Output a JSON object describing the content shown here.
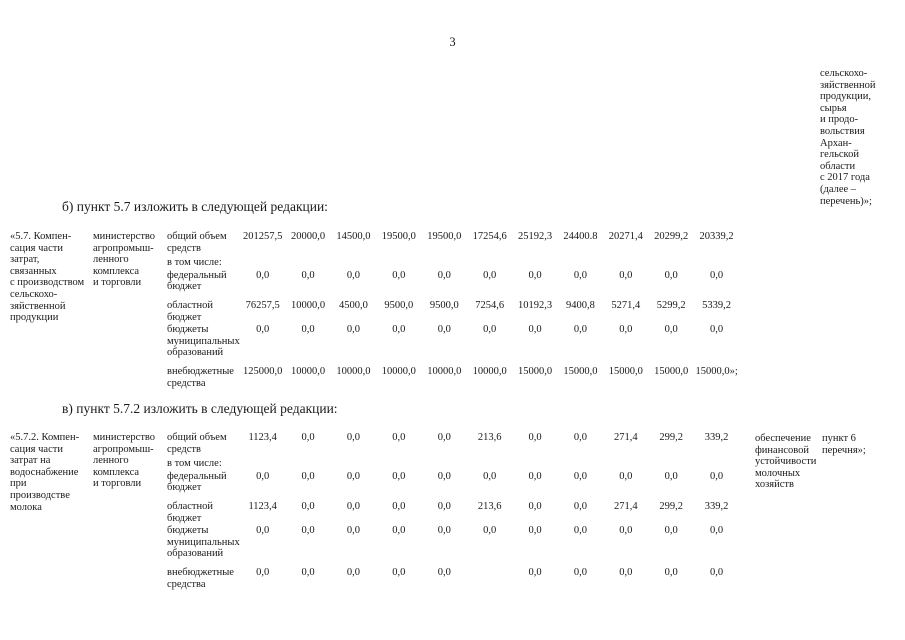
{
  "page_number": "3",
  "carryover_note": "сельскохо-\nзяйственной\nпродукции,\nсырья\nи продо-\nвольствия\nАрхан-\nгельской\nобласти\nс 2017 года\n(далее –\nперечень)»;",
  "sections": [
    {
      "heading": "б) пункт 5.7 изложить в следующей редакции:"
    },
    {
      "heading": "в) пункт 5.7.2 изложить в следующей редакции:"
    }
  ],
  "tables": [
    {
      "item": "«5.7. Компен-\nсация части\nзатрат,\nсвязанных\nс производством\nсельскохо-\nзяйственной\nпродукции",
      "ministry": "министерство\nагропромыш-\nленного\nкомплекса\nи торговли",
      "rows": [
        {
          "label": "общий объем\nсредств",
          "values": [
            "201257,5",
            "20000,0",
            "14500,0",
            "19500,0",
            "19500,0",
            "17254,6",
            "25192,3",
            "24400.8",
            "20271,4",
            "20299,2",
            "20339,2"
          ]
        },
        {
          "label": "в том числе:",
          "values": []
        },
        {
          "label": "федеральный\nбюджет",
          "values": [
            "0,0",
            "0,0",
            "0,0",
            "0,0",
            "0,0",
            "0,0",
            "0,0",
            "0,0",
            "0,0",
            "0,0",
            "0,0"
          ]
        },
        {
          "label": "областной\nбюджет",
          "values": [
            "76257,5",
            "10000,0",
            "4500,0",
            "9500,0",
            "9500,0",
            "7254,6",
            "10192,3",
            "9400,8",
            "5271,4",
            "5299,2",
            "5339,2"
          ]
        },
        {
          "label": "бюджеты\nмуниципальных\nобразований",
          "values": [
            "0,0",
            "0,0",
            "0,0",
            "0,0",
            "0,0",
            "0,0",
            "0,0",
            "0,0",
            "0,0",
            "0,0",
            "0,0"
          ]
        },
        {
          "label": "внебюджетные\nсредства",
          "values": [
            "125000,0",
            "10000,0",
            "10000,0",
            "10000,0",
            "10000,0",
            "10000,0",
            "15000,0",
            "15000,0",
            "15000,0",
            "15000,0",
            "15000,0»;"
          ]
        }
      ]
    },
    {
      "item": "«5.7.2. Компен-\nсация части\nзатрат на\nводоснабжение\nпри\nпроизводстве\nмолока",
      "ministry": "министерство\nагропромыш-\nленного\nкомплекса\nи торговли",
      "purpose": "обеспечение\nфинансовой\nустойчивости\nмолочных\nхозяйств",
      "reference": "пункт 6\nперечня»;",
      "rows": [
        {
          "label": "общий объем\nсредств",
          "values": [
            "1123,4",
            "0,0",
            "0,0",
            "0,0",
            "0,0",
            "213,6",
            "0,0",
            "0,0",
            "271,4",
            "299,2",
            "339,2"
          ]
        },
        {
          "label": "в том числе:",
          "values": []
        },
        {
          "label": "федеральный\nбюджет",
          "values": [
            "0,0",
            "0,0",
            "0,0",
            "0,0",
            "0,0",
            "0,0",
            "0,0",
            "0,0",
            "0,0",
            "0,0",
            "0,0"
          ]
        },
        {
          "label": "областной\nбюджет",
          "values": [
            "1123,4",
            "0,0",
            "0,0",
            "0,0",
            "0,0",
            "213,6",
            "0,0",
            "0,0",
            "271,4",
            "299,2",
            "339,2"
          ]
        },
        {
          "label": "бюджеты\nмуниципальных\nобразований",
          "values": [
            "0,0",
            "0,0",
            "0,0",
            "0,0",
            "0,0",
            "0,0",
            "0,0",
            "0,0",
            "0,0",
            "0,0",
            "0,0"
          ]
        },
        {
          "label": "внебюджетные\nсредства",
          "values": [
            "0,0",
            "0,0",
            "0,0",
            "0,0",
            "0,0",
            "",
            "0,0",
            "0,0",
            "0,0",
            "0,0",
            "0,0"
          ]
        }
      ]
    }
  ],
  "colors": {
    "text": "#1a1a1a",
    "background": "#ffffff"
  }
}
